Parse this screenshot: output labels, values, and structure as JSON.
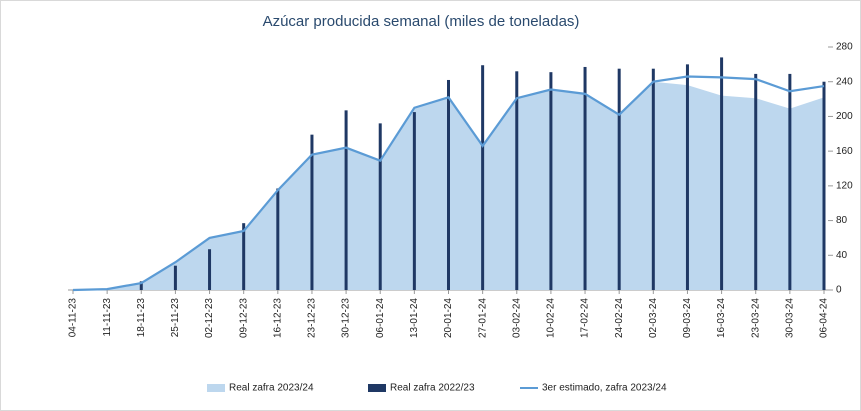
{
  "chart_data": {
    "type": "combo",
    "title": "Azúcar producida semanal (miles de toneladas)",
    "categories": [
      "04-11-23",
      "11-11-23",
      "18-11-23",
      "25-11-23",
      "02-12-23",
      "09-12-23",
      "16-12-23",
      "23-12-23",
      "30-12-23",
      "06-01-24",
      "13-01-24",
      "20-01-24",
      "27-01-24",
      "03-02-24",
      "10-02-24",
      "17-02-24",
      "24-02-24",
      "02-03-24",
      "09-03-24",
      "16-03-24",
      "23-03-24",
      "30-03-24",
      "06-04-24"
    ],
    "series": [
      {
        "name": "Real zafra 2023/24",
        "kind": "area",
        "color": "#bdd7ee",
        "values": [
          0,
          1,
          8,
          32,
          60,
          68,
          115,
          156,
          164,
          149,
          210,
          222,
          166,
          221,
          231,
          226,
          202,
          240,
          236,
          224,
          221,
          209,
          222
        ]
      },
      {
        "name": "Real zafra 2022/23",
        "kind": "bar",
        "color": "#1f3864",
        "values": [
          null,
          null,
          10,
          28,
          47,
          77,
          117,
          179,
          207,
          192,
          205,
          242,
          259,
          252,
          251,
          257,
          255,
          255,
          260,
          268,
          249,
          249,
          240
        ]
      },
      {
        "name": "3er estimado, zafra 2023/24",
        "kind": "line",
        "color": "#5b9bd5",
        "values": [
          0,
          1,
          8,
          32,
          60,
          68,
          115,
          156,
          164,
          149,
          210,
          222,
          166,
          221,
          231,
          226,
          202,
          240,
          246,
          245,
          243,
          229,
          235
        ]
      }
    ],
    "ylim": [
      0,
      280
    ],
    "yticks": [
      0,
      40,
      80,
      120,
      160,
      200,
      240,
      280
    ],
    "grid": false
  }
}
